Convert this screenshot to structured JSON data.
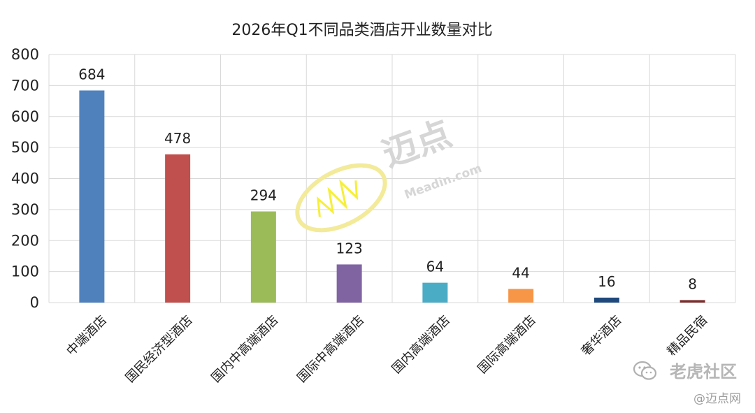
{
  "chart_data": {
    "type": "bar",
    "title": "2026年Q1不同品类酒店开业数量对比",
    "categories": [
      "中端酒店",
      "国民经济型酒店",
      "国内中高端酒店",
      "国际中高端酒店",
      "国内高端酒店",
      "国际高端酒店",
      "奢华酒店",
      "精品民宿"
    ],
    "values": [
      684,
      478,
      294,
      123,
      64,
      44,
      16,
      8
    ],
    "colors": [
      "#4F81BD",
      "#C0504D",
      "#9BBB59",
      "#8064A2",
      "#4BACC6",
      "#F79646",
      "#1F497D",
      "#7B2C2C"
    ],
    "ylim": [
      0,
      800
    ],
    "yticks": [
      "0",
      "100",
      "200",
      "300",
      "400",
      "500",
      "600",
      "700",
      "800"
    ],
    "grid": true,
    "legend": "none"
  },
  "watermark": {
    "brand": "迈点",
    "domain": "Meadin.com"
  },
  "footer": {
    "community": "老虎社区",
    "source": "@迈点网"
  },
  "icons": {
    "wechat": "wechat-icon",
    "watermark_logo": "meadin-logo-icon"
  }
}
